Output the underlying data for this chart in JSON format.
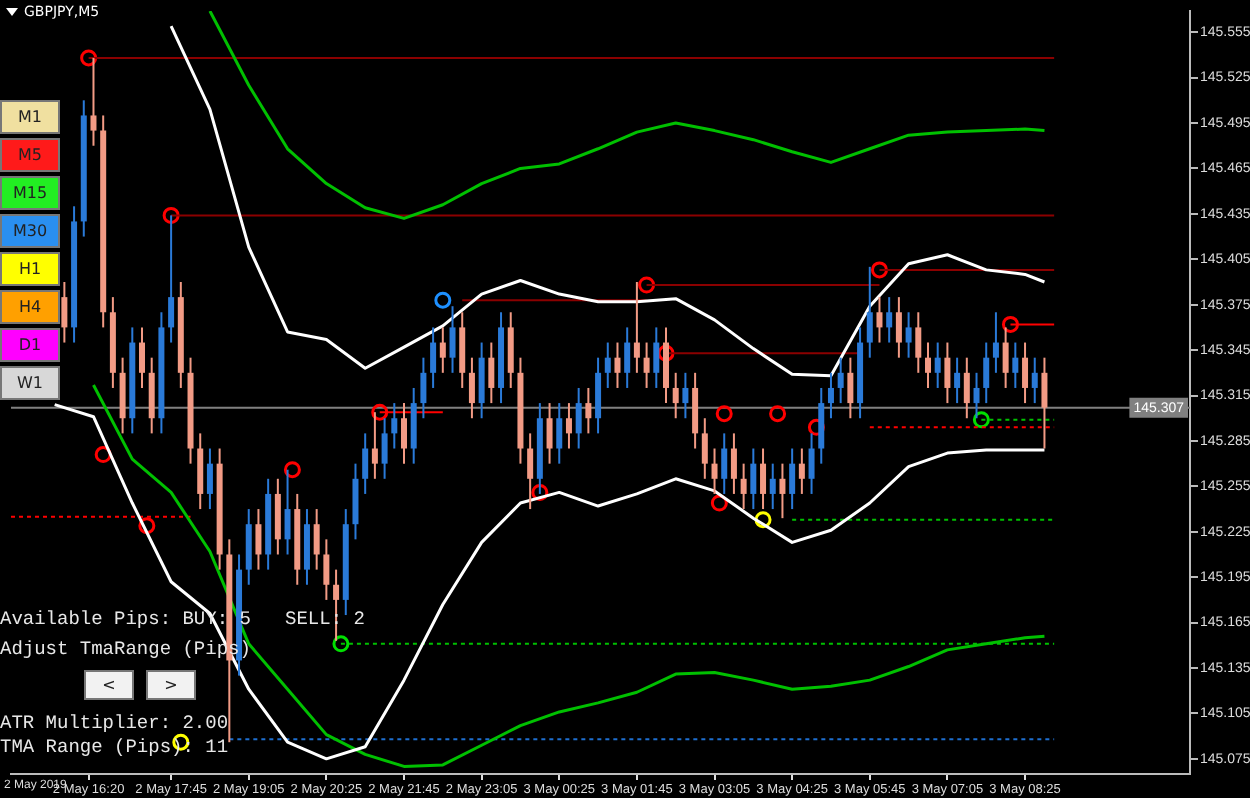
{
  "chart_data": {
    "type": "candlestick",
    "title": "GBPJPY,M5",
    "x": [
      "2019-05-02T15:55",
      "2019-05-02T16:05",
      "2019-05-02T16:15",
      "2019-05-02T16:25",
      "2019-05-02T16:35",
      "2019-05-02T16:45",
      "2019-05-02T16:55",
      "2019-05-02T17:05",
      "2019-05-02T17:15",
      "2019-05-02T17:25",
      "2019-05-02T17:35",
      "2019-05-02T17:45",
      "2019-05-02T17:55",
      "2019-05-02T18:05",
      "2019-05-02T18:15",
      "2019-05-02T18:25",
      "2019-05-02T18:35",
      "2019-05-02T18:45",
      "2019-05-02T18:55",
      "2019-05-02T19:05",
      "2019-05-02T19:15",
      "2019-05-02T19:25",
      "2019-05-02T19:35",
      "2019-05-02T19:45",
      "2019-05-02T19:55",
      "2019-05-02T20:05",
      "2019-05-02T20:15",
      "2019-05-02T20:25",
      "2019-05-02T20:35",
      "2019-05-02T20:45",
      "2019-05-02T20:55",
      "2019-05-02T21:05",
      "2019-05-02T21:15",
      "2019-05-02T21:25",
      "2019-05-02T21:35",
      "2019-05-02T21:45",
      "2019-05-02T21:55",
      "2019-05-02T22:05",
      "2019-05-02T22:15",
      "2019-05-02T22:25",
      "2019-05-02T22:35",
      "2019-05-02T22:45",
      "2019-05-02T22:55",
      "2019-05-02T23:05",
      "2019-05-02T23:15",
      "2019-05-02T23:25",
      "2019-05-02T23:35",
      "2019-05-02T23:45",
      "2019-05-02T23:55",
      "2019-05-03T00:05",
      "2019-05-03T00:15",
      "2019-05-03T00:25",
      "2019-05-03T00:35",
      "2019-05-03T00:45",
      "2019-05-03T00:55",
      "2019-05-03T01:05",
      "2019-05-03T01:15",
      "2019-05-03T01:25",
      "2019-05-03T01:35",
      "2019-05-03T01:45",
      "2019-05-03T01:55",
      "2019-05-03T02:05",
      "2019-05-03T02:15",
      "2019-05-03T02:25",
      "2019-05-03T02:35",
      "2019-05-03T02:45",
      "2019-05-03T02:55",
      "2019-05-03T03:05",
      "2019-05-03T03:15",
      "2019-05-03T03:25",
      "2019-05-03T03:35",
      "2019-05-03T03:45",
      "2019-05-03T03:55",
      "2019-05-03T04:05",
      "2019-05-03T04:15",
      "2019-05-03T04:25",
      "2019-05-03T04:35",
      "2019-05-03T04:45",
      "2019-05-03T04:55",
      "2019-05-03T05:05",
      "2019-05-03T05:15",
      "2019-05-03T05:25",
      "2019-05-03T05:35",
      "2019-05-03T05:45",
      "2019-05-03T05:55",
      "2019-05-03T06:05",
      "2019-05-03T06:15",
      "2019-05-03T06:25",
      "2019-05-03T06:35",
      "2019-05-03T06:45",
      "2019-05-03T06:55",
      "2019-05-03T07:05",
      "2019-05-03T07:15",
      "2019-05-03T07:25",
      "2019-05-03T07:35",
      "2019-05-03T07:45",
      "2019-05-03T07:55",
      "2019-05-03T08:05",
      "2019-05-03T08:15",
      "2019-05-03T08:25",
      "2019-05-03T08:35",
      "2019-05-03T08:45"
    ],
    "ohlc": [
      [
        145.38,
        145.39,
        145.35,
        145.36
      ],
      [
        145.36,
        145.44,
        145.35,
        145.43
      ],
      [
        145.43,
        145.51,
        145.42,
        145.5
      ],
      [
        145.5,
        145.538,
        145.48,
        145.49
      ],
      [
        145.49,
        145.5,
        145.36,
        145.37
      ],
      [
        145.37,
        145.38,
        145.32,
        145.33
      ],
      [
        145.33,
        145.34,
        145.29,
        145.3
      ],
      [
        145.3,
        145.36,
        145.29,
        145.35
      ],
      [
        145.35,
        145.36,
        145.32,
        145.33
      ],
      [
        145.33,
        145.34,
        145.29,
        145.3
      ],
      [
        145.3,
        145.37,
        145.29,
        145.36
      ],
      [
        145.36,
        145.434,
        145.35,
        145.38
      ],
      [
        145.38,
        145.39,
        145.32,
        145.33
      ],
      [
        145.33,
        145.34,
        145.27,
        145.28
      ],
      [
        145.28,
        145.29,
        145.24,
        145.25
      ],
      [
        145.25,
        145.28,
        145.24,
        145.27
      ],
      [
        145.27,
        145.28,
        145.2,
        145.21
      ],
      [
        145.21,
        145.22,
        145.086,
        145.14
      ],
      [
        145.14,
        145.21,
        145.13,
        145.2
      ],
      [
        145.2,
        145.24,
        145.19,
        145.23
      ],
      [
        145.23,
        145.24,
        145.2,
        145.21
      ],
      [
        145.21,
        145.26,
        145.2,
        145.25
      ],
      [
        145.25,
        145.26,
        145.21,
        145.22
      ],
      [
        145.22,
        145.266,
        145.21,
        145.24
      ],
      [
        145.24,
        145.25,
        145.19,
        145.2
      ],
      [
        145.2,
        145.24,
        145.19,
        145.23
      ],
      [
        145.23,
        145.24,
        145.2,
        145.21
      ],
      [
        145.21,
        145.22,
        145.18,
        145.19
      ],
      [
        145.19,
        145.2,
        145.153,
        145.18
      ],
      [
        145.18,
        145.24,
        145.17,
        145.23
      ],
      [
        145.23,
        145.27,
        145.22,
        145.26
      ],
      [
        145.26,
        145.29,
        145.25,
        145.28
      ],
      [
        145.28,
        145.304,
        145.26,
        145.27
      ],
      [
        145.27,
        145.3,
        145.26,
        145.29
      ],
      [
        145.29,
        145.31,
        145.28,
        145.3
      ],
      [
        145.3,
        145.31,
        145.27,
        145.28
      ],
      [
        145.28,
        145.32,
        145.27,
        145.31
      ],
      [
        145.31,
        145.34,
        145.3,
        145.33
      ],
      [
        145.33,
        145.36,
        145.32,
        145.35
      ],
      [
        145.35,
        145.36,
        145.33,
        145.34
      ],
      [
        145.34,
        145.374,
        145.33,
        145.36
      ],
      [
        145.36,
        145.37,
        145.32,
        145.33
      ],
      [
        145.33,
        145.34,
        145.3,
        145.31
      ],
      [
        145.31,
        145.35,
        145.3,
        145.34
      ],
      [
        145.34,
        145.35,
        145.31,
        145.32
      ],
      [
        145.32,
        145.37,
        145.31,
        145.36
      ],
      [
        145.36,
        145.37,
        145.32,
        145.33
      ],
      [
        145.33,
        145.34,
        145.27,
        145.28
      ],
      [
        145.28,
        145.29,
        145.24,
        145.26
      ],
      [
        145.26,
        145.31,
        145.25,
        145.3
      ],
      [
        145.3,
        145.31,
        145.27,
        145.28
      ],
      [
        145.28,
        145.31,
        145.27,
        145.3
      ],
      [
        145.3,
        145.31,
        145.28,
        145.29
      ],
      [
        145.29,
        145.32,
        145.28,
        145.31
      ],
      [
        145.31,
        145.32,
        145.29,
        145.3
      ],
      [
        145.3,
        145.34,
        145.29,
        145.33
      ],
      [
        145.33,
        145.35,
        145.32,
        145.34
      ],
      [
        145.34,
        145.35,
        145.32,
        145.33
      ],
      [
        145.33,
        145.36,
        145.32,
        145.35
      ],
      [
        145.35,
        145.39,
        145.33,
        145.34
      ],
      [
        145.34,
        145.35,
        145.32,
        145.33
      ],
      [
        145.33,
        145.36,
        145.32,
        145.35
      ],
      [
        145.35,
        145.36,
        145.31,
        145.32
      ],
      [
        145.32,
        145.33,
        145.3,
        145.31
      ],
      [
        145.31,
        145.33,
        145.3,
        145.32
      ],
      [
        145.32,
        145.33,
        145.28,
        145.29
      ],
      [
        145.29,
        145.3,
        145.26,
        145.27
      ],
      [
        145.27,
        145.28,
        145.25,
        145.26
      ],
      [
        145.26,
        145.29,
        145.25,
        145.28
      ],
      [
        145.28,
        145.29,
        145.25,
        145.26
      ],
      [
        145.26,
        145.27,
        145.24,
        145.25
      ],
      [
        145.25,
        145.28,
        145.24,
        145.27
      ],
      [
        145.27,
        145.28,
        145.24,
        145.25
      ],
      [
        145.25,
        145.27,
        145.24,
        145.26
      ],
      [
        145.26,
        145.27,
        145.234,
        145.25
      ],
      [
        145.25,
        145.28,
        145.24,
        145.27
      ],
      [
        145.27,
        145.28,
        145.25,
        145.26
      ],
      [
        145.26,
        145.29,
        145.25,
        145.28
      ],
      [
        145.28,
        145.32,
        145.27,
        145.31
      ],
      [
        145.31,
        145.33,
        145.3,
        145.32
      ],
      [
        145.32,
        145.34,
        145.31,
        145.33
      ],
      [
        145.33,
        145.34,
        145.3,
        145.31
      ],
      [
        145.31,
        145.36,
        145.3,
        145.35
      ],
      [
        145.35,
        145.4,
        145.34,
        145.37
      ],
      [
        145.37,
        145.38,
        145.35,
        145.36
      ],
      [
        145.36,
        145.38,
        145.35,
        145.37
      ],
      [
        145.37,
        145.38,
        145.34,
        145.35
      ],
      [
        145.35,
        145.37,
        145.34,
        145.36
      ],
      [
        145.36,
        145.37,
        145.33,
        145.34
      ],
      [
        145.34,
        145.35,
        145.32,
        145.33
      ],
      [
        145.33,
        145.35,
        145.32,
        145.34
      ],
      [
        145.34,
        145.35,
        145.31,
        145.32
      ],
      [
        145.32,
        145.34,
        145.31,
        145.33
      ],
      [
        145.33,
        145.34,
        145.3,
        145.31
      ],
      [
        145.31,
        145.33,
        145.3,
        145.32
      ],
      [
        145.32,
        145.35,
        145.31,
        145.34
      ],
      [
        145.34,
        145.37,
        145.33,
        145.35
      ],
      [
        145.35,
        145.36,
        145.32,
        145.33
      ],
      [
        145.33,
        145.35,
        145.32,
        145.34
      ],
      [
        145.34,
        145.35,
        145.31,
        145.32
      ],
      [
        145.32,
        145.34,
        145.31,
        145.33
      ],
      [
        145.33,
        145.34,
        145.28,
        145.307
      ]
    ],
    "colors": [
      "#f29b85",
      "#2a7ad8",
      "#2a7ad8",
      "#f29b85",
      "#f29b85",
      "#f29b85",
      "#f29b85",
      "#2a7ad8",
      "#f29b85",
      "#f29b85",
      "#2a7ad8",
      "#2a7ad8",
      "#f29b85",
      "#f29b85",
      "#f29b85",
      "#2a7ad8",
      "#f29b85",
      "#f29b85",
      "#2a7ad8",
      "#2a7ad8",
      "#f29b85",
      "#2a7ad8",
      "#f29b85",
      "#2a7ad8",
      "#f29b85",
      "#2a7ad8",
      "#f29b85",
      "#f29b85",
      "#f29b85",
      "#2a7ad8",
      "#2a7ad8",
      "#2a7ad8",
      "#f29b85",
      "#2a7ad8",
      "#2a7ad8",
      "#f29b85",
      "#2a7ad8",
      "#2a7ad8",
      "#2a7ad8",
      "#f29b85",
      "#2a7ad8",
      "#f29b85",
      "#f29b85",
      "#2a7ad8",
      "#f29b85",
      "#2a7ad8",
      "#f29b85",
      "#f29b85",
      "#f29b85",
      "#2a7ad8",
      "#f29b85",
      "#2a7ad8",
      "#f29b85",
      "#2a7ad8",
      "#f29b85",
      "#2a7ad8",
      "#2a7ad8",
      "#f29b85",
      "#2a7ad8",
      "#f29b85",
      "#f29b85",
      "#2a7ad8",
      "#f29b85",
      "#f29b85",
      "#2a7ad8",
      "#f29b85",
      "#f29b85",
      "#f29b85",
      "#2a7ad8",
      "#f29b85",
      "#f29b85",
      "#2a7ad8",
      "#f29b85",
      "#2a7ad8",
      "#f29b85",
      "#2a7ad8",
      "#f29b85",
      "#2a7ad8",
      "#2a7ad8",
      "#2a7ad8",
      "#2a7ad8",
      "#f29b85",
      "#2a7ad8",
      "#2a7ad8",
      "#f29b85",
      "#2a7ad8",
      "#f29b85",
      "#2a7ad8",
      "#f29b85",
      "#f29b85",
      "#2a7ad8",
      "#f29b85",
      "#2a7ad8",
      "#f29b85",
      "#2a7ad8",
      "#2a7ad8",
      "#2a7ad8",
      "#f29b85",
      "#2a7ad8",
      "#f29b85",
      "#2a7ad8",
      "#f29b85"
    ],
    "xlim": [
      "2019-05-02T15:00",
      "2019-05-03T11:15"
    ],
    "xticks": [
      {
        "value": "2019-05-02T16:20",
        "label": "2 May 16:20"
      },
      {
        "value": "2019-05-02T17:45",
        "label": "2 May 17:45"
      },
      {
        "value": "2019-05-02T19:05",
        "label": "2 May 19:05"
      },
      {
        "value": "2019-05-02T20:25",
        "label": "2 May 20:25"
      },
      {
        "value": "2019-05-02T21:45",
        "label": "2 May 21:45"
      },
      {
        "value": "2019-05-02T23:05",
        "label": "2 May 23:05"
      },
      {
        "value": "2019-05-03T00:25",
        "label": "3 May 00:25"
      },
      {
        "value": "2019-05-03T01:45",
        "label": "3 May 01:45"
      },
      {
        "value": "2019-05-03T03:05",
        "label": "3 May 03:05"
      },
      {
        "value": "2019-05-03T04:25",
        "label": "3 May 04:25"
      },
      {
        "value": "2019-05-03T05:45",
        "label": "3 May 05:45"
      },
      {
        "value": "2019-05-03T07:05",
        "label": "3 May 07:05"
      },
      {
        "value": "2019-05-03T08:25",
        "label": "3 May 08:25"
      }
    ],
    "ylim": [
      145.065,
      145.569
    ],
    "yticks": [
      145.555,
      145.525,
      145.495,
      145.465,
      145.435,
      145.405,
      145.375,
      145.345,
      145.315,
      145.285,
      145.255,
      145.225,
      145.195,
      145.165,
      145.135,
      145.105,
      145.075
    ],
    "ref_lines": [
      {
        "axis": "y",
        "value": 145.307,
        "label": "145.307",
        "color": "#808080"
      }
    ],
    "annotations": [
      "M1",
      "M5",
      "M15",
      "M30",
      "H1",
      "H4",
      "D1",
      "W1",
      "Available Pips: BUY: 5   SELL: 2",
      "Adjust TmaRange (Pips)",
      "<",
      ">",
      "ATR Multiplier: 2.00",
      "TMA Range (Pips): 11",
      "2 May 2019"
    ],
    "series": [
      {
        "type": "line",
        "color": "#ffffff",
        "x": [
          "2019-05-02T17:45",
          "2019-05-02T18:25",
          "2019-05-02T19:05",
          "2019-05-02T19:45",
          "2019-05-02T20:25",
          "2019-05-02T21:05",
          "2019-05-02T21:45",
          "2019-05-02T22:25",
          "2019-05-02T23:05",
          "2019-05-02T23:45",
          "2019-05-03T00:25",
          "2019-05-03T01:05",
          "2019-05-03T01:45",
          "2019-05-03T02:25",
          "2019-05-03T03:05",
          "2019-05-03T03:45",
          "2019-05-03T04:25",
          "2019-05-03T05:05",
          "2019-05-03T05:45",
          "2019-05-03T06:25",
          "2019-05-03T07:05",
          "2019-05-03T07:45",
          "2019-05-03T08:25",
          "2019-05-03T08:45"
        ],
        "values": [
          145.559,
          145.504,
          145.413,
          145.357,
          145.352,
          145.333,
          145.347,
          145.361,
          145.382,
          145.391,
          145.382,
          145.377,
          145.377,
          145.379,
          145.365,
          145.346,
          145.329,
          145.328,
          145.374,
          145.402,
          145.408,
          145.398,
          145.395,
          145.39
        ]
      },
      {
        "type": "line",
        "color": "#ffffff",
        "x": [
          "2019-05-02T15:45",
          "2019-05-02T16:25",
          "2019-05-02T17:05",
          "2019-05-02T17:45",
          "2019-05-02T18:25",
          "2019-05-02T19:05",
          "2019-05-02T19:45",
          "2019-05-02T20:25",
          "2019-05-02T21:05",
          "2019-05-02T21:45",
          "2019-05-02T22:25",
          "2019-05-02T23:05",
          "2019-05-02T23:45",
          "2019-05-03T00:25",
          "2019-05-03T01:05",
          "2019-05-03T01:45",
          "2019-05-03T02:25",
          "2019-05-03T03:05",
          "2019-05-03T03:45",
          "2019-05-03T04:25",
          "2019-05-03T05:05",
          "2019-05-03T05:45",
          "2019-05-03T06:25",
          "2019-05-03T07:05",
          "2019-05-03T07:45",
          "2019-05-03T08:25",
          "2019-05-03T08:45"
        ],
        "values": [
          145.309,
          145.301,
          145.244,
          145.192,
          145.171,
          145.121,
          145.086,
          145.075,
          145.083,
          145.127,
          145.177,
          145.218,
          145.244,
          145.251,
          145.242,
          145.25,
          145.26,
          145.252,
          145.234,
          145.218,
          145.226,
          145.244,
          145.268,
          145.277,
          145.279,
          145.279,
          145.279
        ]
      },
      {
        "type": "line",
        "color": "#00c000",
        "x": [
          "2019-05-02T18:25",
          "2019-05-02T19:05",
          "2019-05-02T19:45",
          "2019-05-02T20:25",
          "2019-05-02T21:05",
          "2019-05-02T21:45",
          "2019-05-02T22:25",
          "2019-05-02T23:05",
          "2019-05-02T23:45",
          "2019-05-03T00:25",
          "2019-05-03T01:05",
          "2019-05-03T01:45",
          "2019-05-03T02:25",
          "2019-05-03T03:05",
          "2019-05-03T03:45",
          "2019-05-03T04:25",
          "2019-05-03T05:05",
          "2019-05-03T05:45",
          "2019-05-03T06:25",
          "2019-05-03T07:05",
          "2019-05-03T07:45",
          "2019-05-03T08:25",
          "2019-05-03T08:45"
        ],
        "values": [
          145.569,
          145.52,
          145.478,
          145.455,
          145.439,
          145.432,
          145.441,
          145.455,
          145.465,
          145.468,
          145.478,
          145.489,
          145.495,
          145.49,
          145.484,
          145.476,
          145.469,
          145.478,
          145.487,
          145.489,
          145.49,
          145.491,
          145.49
        ]
      },
      {
        "type": "line",
        "color": "#00c000",
        "x": [
          "2019-05-02T16:25",
          "2019-05-02T17:05",
          "2019-05-02T17:45",
          "2019-05-02T18:25",
          "2019-05-02T19:05",
          "2019-05-02T19:45",
          "2019-05-02T20:25",
          "2019-05-02T21:05",
          "2019-05-02T21:45",
          "2019-05-02T22:25",
          "2019-05-02T23:05",
          "2019-05-02T23:45",
          "2019-05-03T00:25",
          "2019-05-03T01:05",
          "2019-05-03T01:45",
          "2019-05-03T02:25",
          "2019-05-03T03:05",
          "2019-05-03T03:45",
          "2019-05-03T04:25",
          "2019-05-03T05:05",
          "2019-05-03T05:45",
          "2019-05-03T06:25",
          "2019-05-03T07:05",
          "2019-05-03T07:45",
          "2019-05-03T08:25",
          "2019-05-03T08:45"
        ],
        "values": [
          145.322,
          145.273,
          145.251,
          145.212,
          145.151,
          145.121,
          145.091,
          145.078,
          145.07,
          145.071,
          145.084,
          145.097,
          145.106,
          145.112,
          145.119,
          145.131,
          145.132,
          145.127,
          145.121,
          145.123,
          145.127,
          145.136,
          145.147,
          145.151,
          145.155,
          145.156
        ]
      },
      {
        "type": "line",
        "color": "#8b0000",
        "line_style": "solid",
        "x": [
          "2019-05-02T16:20",
          "2019-05-03T08:55"
        ],
        "values": [
          145.538,
          145.538
        ]
      },
      {
        "type": "line",
        "color": "#8b0000",
        "line_style": "solid",
        "x": [
          "2019-05-02T17:45",
          "2019-05-03T08:55"
        ],
        "values": [
          145.434,
          145.434
        ]
      },
      {
        "type": "line",
        "color": "#8b0000",
        "line_style": "solid",
        "x": [
          "2019-05-03T05:55",
          "2019-05-03T08:55"
        ],
        "values": [
          145.398,
          145.398
        ]
      },
      {
        "type": "line",
        "color": "#8b0000",
        "line_style": "solid",
        "x": [
          "2019-05-03T01:55",
          "2019-05-03T05:55"
        ],
        "values": [
          145.388,
          145.388
        ]
      },
      {
        "type": "line",
        "color": "#8b0000",
        "line_style": "solid",
        "x": [
          "2019-05-02T22:45",
          "2019-05-03T01:55"
        ],
        "values": [
          145.378,
          145.378
        ]
      },
      {
        "type": "line",
        "color": "#ff0000",
        "line_style": "solid",
        "x": [
          "2019-05-03T08:10",
          "2019-05-03T08:55"
        ],
        "values": [
          145.362,
          145.362
        ]
      },
      {
        "type": "line",
        "color": "#8b0000",
        "line_style": "solid",
        "x": [
          "2019-05-03T02:15",
          "2019-05-03T05:35"
        ],
        "values": [
          145.343,
          145.343
        ]
      },
      {
        "type": "line",
        "color": "#ff0000",
        "line_style": "solid",
        "x": [
          "2019-05-02T21:20",
          "2019-05-02T22:25"
        ],
        "values": [
          145.304,
          145.304
        ]
      },
      {
        "type": "line",
        "color": "#ff0000",
        "line_style": "dotted",
        "x": [
          "2019-05-02T15:00",
          "2019-05-02T18:05"
        ],
        "values": [
          145.235,
          145.235
        ]
      },
      {
        "type": "line",
        "color": "#00c000",
        "line_style": "dotted",
        "x": [
          "2019-05-02T20:40",
          "2019-05-03T08:55"
        ],
        "values": [
          145.151,
          145.151
        ]
      },
      {
        "type": "line",
        "color": "#1e6fd0",
        "line_style": "dotted",
        "x": [
          "2019-05-02T18:45",
          "2019-05-03T08:55"
        ],
        "values": [
          145.088,
          145.088
        ]
      },
      {
        "type": "line",
        "color": "#00c000",
        "line_style": "dotted",
        "x": [
          "2019-05-03T04:25",
          "2019-05-03T08:55"
        ],
        "values": [
          145.233,
          145.233
        ]
      },
      {
        "type": "line",
        "color": "#ff0000",
        "line_style": "dotted",
        "x": [
          "2019-05-03T05:45",
          "2019-05-03T08:55"
        ],
        "values": [
          145.294,
          145.294
        ]
      },
      {
        "type": "line",
        "color": "#00c000",
        "line_style": "dotted",
        "x": [
          "2019-05-03T07:40",
          "2019-05-03T08:55"
        ],
        "values": [
          145.299,
          145.299
        ]
      },
      {
        "type": "scatter",
        "color": "#ff0000",
        "marker": "circle",
        "x": [
          "2019-05-02T16:20",
          "2019-05-02T17:45",
          "2019-05-02T19:50",
          "2019-05-02T21:20",
          "2019-05-03T01:55",
          "2019-05-03T02:15",
          "2019-05-03T05:55",
          "2019-05-03T08:10",
          "2019-05-02T16:35",
          "2019-05-02T17:20",
          "2019-05-03T00:05",
          "2019-05-03T03:15",
          "2019-05-03T04:10",
          "2019-05-03T04:50",
          "2019-05-03T03:10"
        ],
        "values": [
          145.538,
          145.434,
          145.266,
          145.304,
          145.388,
          145.343,
          145.398,
          145.362,
          145.276,
          145.229,
          145.251,
          145.303,
          145.303,
          145.294,
          145.244
        ]
      },
      {
        "type": "scatter",
        "color": "#00e000",
        "marker": "circle",
        "x": [
          "2019-05-02T20:40",
          "2019-05-03T07:40"
        ],
        "values": [
          145.151,
          145.299
        ]
      },
      {
        "type": "scatter",
        "color": "#ffff00",
        "marker": "circle",
        "x": [
          "2019-05-02T17:55",
          "2019-05-03T03:55"
        ],
        "values": [
          145.086,
          145.233
        ]
      },
      {
        "type": "scatter",
        "color": "#1e90ff",
        "marker": "circle",
        "x": [
          "2019-05-02T22:25"
        ],
        "values": [
          145.378
        ]
      }
    ]
  }
}
